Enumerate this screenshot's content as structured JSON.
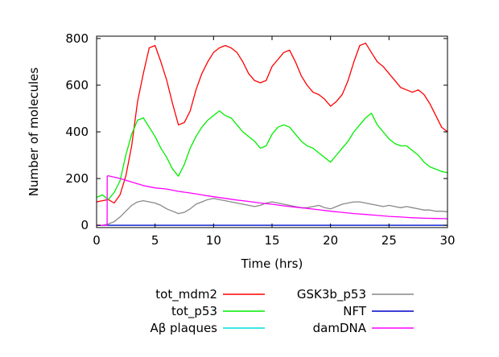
{
  "chart_data": {
    "type": "line",
    "title": "",
    "xlabel": "Time (hrs)",
    "ylabel": "Number of molecules",
    "xlim": [
      0,
      30
    ],
    "ylim": [
      -10,
      810
    ],
    "x_ticks": [
      0,
      5,
      10,
      15,
      20,
      25,
      30
    ],
    "y_ticks": [
      0,
      200,
      400,
      600,
      800
    ],
    "grid": false,
    "legend_position": "below-plot",
    "series": [
      {
        "name": "tot_mdm2",
        "color": "#ff0000",
        "x": [
          0,
          0.5,
          1,
          1.5,
          2,
          2.5,
          3,
          3.5,
          4,
          4.5,
          5,
          5.5,
          6,
          6.5,
          7,
          7.5,
          8,
          8.5,
          9,
          9.5,
          10,
          10.5,
          11,
          11.5,
          12,
          12.5,
          13,
          13.5,
          14,
          14.5,
          15,
          15.5,
          16,
          16.5,
          17,
          17.5,
          18,
          18.5,
          19,
          19.5,
          20,
          20.5,
          21,
          21.5,
          22,
          22.5,
          23,
          23.5,
          24,
          24.5,
          25,
          25.5,
          26,
          26.5,
          27,
          27.5,
          28,
          28.5,
          29,
          29.5,
          30
        ],
        "values": [
          100,
          105,
          110,
          95,
          130,
          210,
          340,
          530,
          650,
          760,
          770,
          700,
          620,
          520,
          430,
          440,
          490,
          580,
          650,
          700,
          740,
          760,
          770,
          760,
          740,
          700,
          650,
          620,
          610,
          620,
          680,
          710,
          740,
          750,
          700,
          640,
          600,
          570,
          560,
          540,
          510,
          530,
          560,
          620,
          700,
          770,
          780,
          740,
          700,
          680,
          650,
          620,
          590,
          580,
          570,
          580,
          560,
          520,
          470,
          420,
          400
        ]
      },
      {
        "name": "tot_p53",
        "color": "#00ee00",
        "x": [
          0,
          0.5,
          1,
          1.5,
          2,
          2.5,
          3,
          3.5,
          4,
          4.5,
          5,
          5.5,
          6,
          6.5,
          7,
          7.5,
          8,
          8.5,
          9,
          9.5,
          10,
          10.5,
          11,
          11.5,
          12,
          12.5,
          13,
          13.5,
          14,
          14.5,
          15,
          15.5,
          16,
          16.5,
          17,
          17.5,
          18,
          18.5,
          19,
          19.5,
          20,
          20.5,
          21,
          21.5,
          22,
          22.5,
          23,
          23.5,
          24,
          24.5,
          25,
          25.5,
          26,
          26.5,
          27,
          27.5,
          28,
          28.5,
          29,
          29.5,
          30
        ],
        "values": [
          120,
          130,
          110,
          140,
          190,
          300,
          390,
          450,
          460,
          420,
          380,
          330,
          290,
          240,
          210,
          260,
          330,
          380,
          420,
          450,
          470,
          490,
          470,
          460,
          430,
          400,
          380,
          360,
          330,
          340,
          390,
          420,
          430,
          420,
          390,
          360,
          340,
          330,
          310,
          290,
          270,
          300,
          330,
          360,
          400,
          430,
          460,
          480,
          430,
          400,
          370,
          350,
          340,
          340,
          320,
          300,
          270,
          250,
          240,
          230,
          225
        ]
      },
      {
        "name": "Aβ plaques",
        "color": "#00dddd",
        "x": [
          0,
          30
        ],
        "values": [
          0,
          0
        ]
      },
      {
        "name": "GSK3b_p53",
        "color": "#888888",
        "x": [
          0,
          0.5,
          1,
          1.5,
          2,
          2.5,
          3,
          3.5,
          4,
          4.5,
          5,
          5.5,
          6,
          6.5,
          7,
          7.5,
          8,
          8.5,
          9,
          9.5,
          10,
          10.5,
          11,
          11.5,
          12,
          12.5,
          13,
          13.5,
          14,
          14.5,
          15,
          15.5,
          16,
          16.5,
          17,
          17.5,
          18,
          18.5,
          19,
          19.5,
          20,
          20.5,
          21,
          21.5,
          22,
          22.5,
          23,
          23.5,
          24,
          24.5,
          25,
          25.5,
          26,
          26.5,
          27,
          27.5,
          28,
          28.5,
          29,
          29.5,
          30
        ],
        "values": [
          0,
          0,
          5,
          15,
          35,
          60,
          85,
          100,
          105,
          100,
          95,
          85,
          70,
          60,
          50,
          55,
          70,
          90,
          100,
          110,
          115,
          110,
          105,
          100,
          95,
          90,
          85,
          80,
          85,
          95,
          100,
          95,
          90,
          85,
          80,
          75,
          75,
          80,
          85,
          75,
          70,
          80,
          90,
          95,
          100,
          100,
          95,
          90,
          85,
          80,
          85,
          80,
          75,
          80,
          75,
          70,
          65,
          65,
          60,
          60,
          58
        ]
      },
      {
        "name": "NFT",
        "color": "#0000cc",
        "x": [
          0,
          30
        ],
        "values": [
          0,
          0
        ]
      },
      {
        "name": "damDNA",
        "color": "#ff00ff",
        "x": [
          0,
          0.9,
          0.91,
          1.0,
          2,
          3,
          4,
          5,
          6,
          7,
          8,
          9,
          10,
          11,
          12,
          13,
          14,
          15,
          16,
          17,
          18,
          19,
          20,
          21,
          22,
          23,
          24,
          25,
          26,
          27,
          28,
          29,
          30
        ],
        "values": [
          0,
          0,
          210,
          212,
          200,
          185,
          170,
          160,
          155,
          145,
          138,
          130,
          122,
          115,
          108,
          102,
          95,
          90,
          83,
          77,
          72,
          66,
          60,
          55,
          50,
          46,
          42,
          38,
          35,
          32,
          30,
          29,
          28
        ]
      }
    ]
  }
}
